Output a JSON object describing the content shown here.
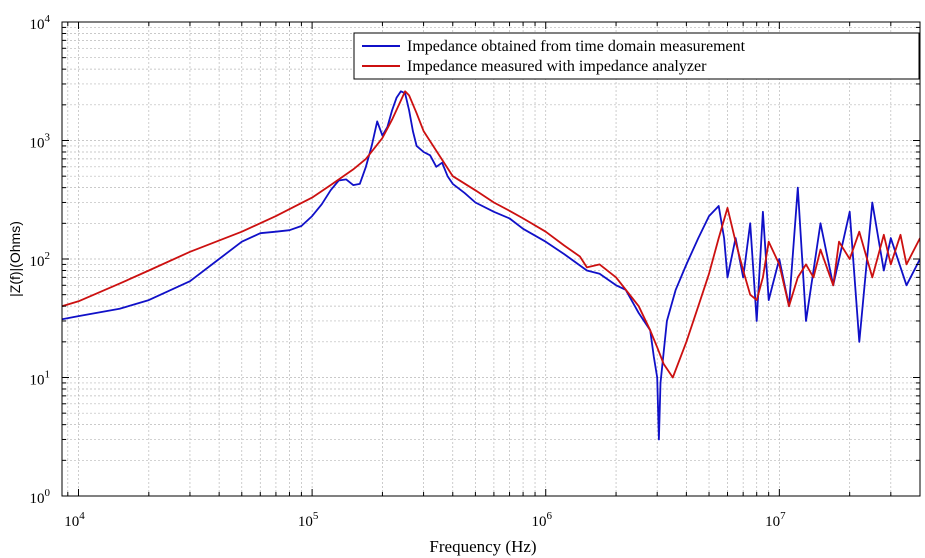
{
  "chart_data": {
    "type": "line",
    "title": "",
    "xlabel": "Frequency (Hz)",
    "ylabel": "|Z(f)|(Ohms)",
    "xscale": "log",
    "yscale": "log",
    "xlim": [
      8500,
      40000000
    ],
    "ylim": [
      1,
      10000
    ],
    "grid": true,
    "legend_position": "top-right",
    "x_ticks": [
      {
        "value": 10000,
        "base": "10",
        "exp": "4"
      },
      {
        "value": 100000,
        "base": "10",
        "exp": "5"
      },
      {
        "value": 1000000,
        "base": "10",
        "exp": "6"
      },
      {
        "value": 10000000,
        "base": "10",
        "exp": "7"
      }
    ],
    "y_ticks": [
      {
        "value": 1,
        "base": "10",
        "exp": "0"
      },
      {
        "value": 10,
        "base": "10",
        "exp": "1"
      },
      {
        "value": 100,
        "base": "10",
        "exp": "2"
      },
      {
        "value": 1000,
        "base": "10",
        "exp": "3"
      },
      {
        "value": 10000,
        "base": "10",
        "exp": "4"
      }
    ],
    "series": [
      {
        "name": "Impedance obtained from time domain measurement",
        "color": "#1010c8",
        "x": [
          8500,
          10000,
          15000,
          20000,
          30000,
          40000,
          50000,
          60000,
          70000,
          80000,
          90000,
          100000,
          110000,
          120000,
          130000,
          140000,
          150000,
          160000,
          170000,
          180000,
          190000,
          200000,
          210000,
          220000,
          230000,
          240000,
          250000,
          260000,
          270000,
          280000,
          300000,
          320000,
          340000,
          360000,
          380000,
          400000,
          450000,
          500000,
          600000,
          700000,
          800000,
          1000000,
          1200000,
          1500000,
          1700000,
          2000000,
          2200000,
          2500000,
          2800000,
          2900000,
          3000000,
          3050000,
          3100000,
          3300000,
          3600000,
          4000000,
          4500000,
          5000000,
          5500000,
          5800000,
          6000000,
          6500000,
          7000000,
          7500000,
          8000000,
          8500000,
          9000000,
          10000000,
          11000000,
          12000000,
          13000000,
          15000000,
          17000000,
          20000000,
          22000000,
          25000000,
          28000000,
          30000000,
          35000000,
          40000000
        ],
        "values": [
          31,
          33,
          38,
          45,
          65,
          100,
          140,
          165,
          170,
          175,
          190,
          230,
          290,
          380,
          460,
          470,
          420,
          430,
          600,
          900,
          1450,
          1100,
          1300,
          1800,
          2300,
          2600,
          2500,
          1800,
          1200,
          900,
          800,
          750,
          600,
          650,
          500,
          430,
          360,
          300,
          250,
          220,
          180,
          140,
          110,
          80,
          75,
          60,
          55,
          35,
          25,
          15,
          10,
          3,
          9,
          30,
          55,
          90,
          150,
          230,
          280,
          150,
          70,
          150,
          70,
          200,
          30,
          250,
          45,
          100,
          40,
          400,
          30,
          200,
          60,
          250,
          20,
          300,
          80,
          150,
          60,
          100
        ]
      },
      {
        "name": "Impedance measured with impedance analyzer",
        "color": "#cc1010",
        "x": [
          8500,
          10000,
          15000,
          20000,
          30000,
          50000,
          70000,
          100000,
          120000,
          150000,
          170000,
          200000,
          220000,
          250000,
          260000,
          280000,
          300000,
          350000,
          400000,
          500000,
          600000,
          700000,
          800000,
          1000000,
          1200000,
          1400000,
          1500000,
          1700000,
          2000000,
          2500000,
          2800000,
          3000000,
          3200000,
          3500000,
          4000000,
          4500000,
          5000000,
          5500000,
          6000000,
          6500000,
          7000000,
          7500000,
          8000000,
          8500000,
          9000000,
          10000000,
          11000000,
          12000000,
          13000000,
          14000000,
          15000000,
          17000000,
          18000000,
          20000000,
          22000000,
          25000000,
          28000000,
          30000000,
          33000000,
          35000000,
          40000000
        ],
        "values": [
          40,
          44,
          62,
          80,
          115,
          170,
          230,
          330,
          420,
          570,
          700,
          1050,
          1500,
          2600,
          2400,
          1700,
          1200,
          750,
          500,
          380,
          300,
          255,
          220,
          170,
          130,
          105,
          85,
          90,
          70,
          40,
          25,
          18,
          13,
          10,
          20,
          40,
          75,
          150,
          270,
          140,
          80,
          50,
          45,
          70,
          140,
          90,
          40,
          70,
          90,
          70,
          120,
          60,
          140,
          100,
          170,
          70,
          160,
          90,
          160,
          90,
          150
        ]
      }
    ]
  }
}
